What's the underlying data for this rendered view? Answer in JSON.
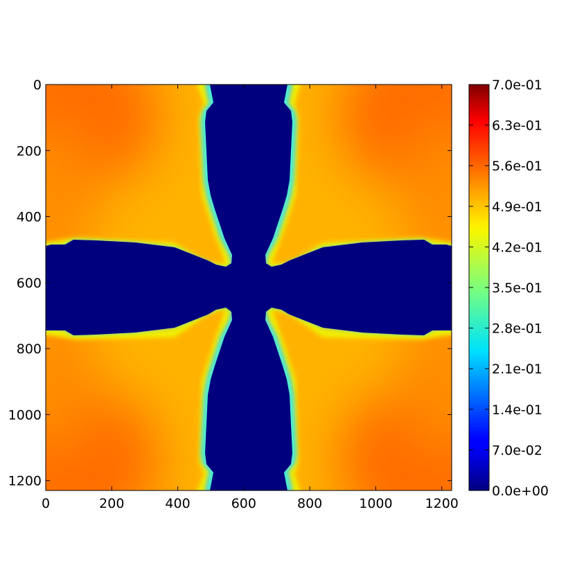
{
  "chart_data": {
    "type": "heatmap",
    "title": "",
    "xlabel": "",
    "ylabel": "",
    "x_ticks": [
      "0",
      "200",
      "400",
      "600",
      "800",
      "1000",
      "1200"
    ],
    "y_ticks": [
      "0",
      "200",
      "400",
      "600",
      "800",
      "1000",
      "1200"
    ],
    "xlim": [
      0,
      1230
    ],
    "ylim": [
      1230,
      0
    ],
    "y_axis_inverted": true,
    "grid": false,
    "colormap": "jet",
    "colorbar": {
      "vmin": 0.0,
      "vmax": 0.7,
      "position": "right",
      "tick_values": [
        0.0,
        0.07,
        0.14,
        0.21,
        0.28,
        0.35,
        0.42,
        0.49,
        0.56,
        0.63,
        0.7
      ],
      "tick_labels": [
        "0.0e+00",
        "7.0e-02",
        "1.4e-01",
        "2.1e-01",
        "2.8e-01",
        "3.5e-01",
        "4.2e-01",
        "4.9e-01",
        "5.6e-01",
        "6.3e-01",
        "7.0e-01"
      ]
    },
    "field_description": {
      "low_region": "cross-shaped region with value 0.0 along vertical band x≈500–740 and horizontal band y≈490–740",
      "high_region": "four quadrant regions with values ≈0.49 near the cross boundary rising to ≈0.58 toward the outer corners",
      "low_value": 0.0,
      "interface_value": 0.49,
      "corner_value": 0.58
    }
  },
  "colors": {
    "jet_low": "#00007f",
    "jet_high": "#7f0000",
    "frame": "#000000"
  }
}
